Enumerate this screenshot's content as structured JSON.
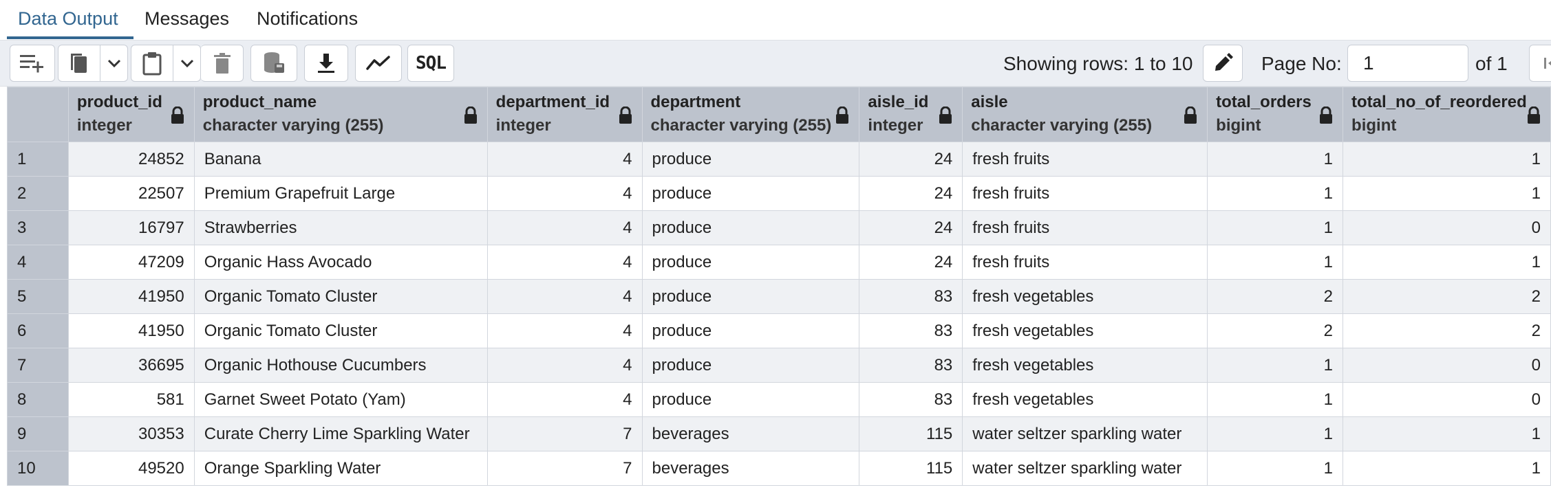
{
  "tabs": [
    {
      "label": "Data Output",
      "active": true
    },
    {
      "label": "Messages",
      "active": false
    },
    {
      "label": "Notifications",
      "active": false
    }
  ],
  "toolbar": {
    "sql_label": "SQL",
    "rows_info": "Showing rows: 1 to 10",
    "page_label": "Page No:",
    "page_value": "1",
    "page_of": "of 1"
  },
  "columns": [
    {
      "name": "product_id",
      "type": "integer"
    },
    {
      "name": "product_name",
      "type": "character varying (255)"
    },
    {
      "name": "department_id",
      "type": "integer"
    },
    {
      "name": "department",
      "type": "character varying (255)"
    },
    {
      "name": "aisle_id",
      "type": "integer"
    },
    {
      "name": "aisle",
      "type": "character varying (255)"
    },
    {
      "name": "total_orders",
      "type": "bigint"
    },
    {
      "name": "total_no_of_reordered",
      "type": "bigint"
    }
  ],
  "rows": [
    {
      "n": "1",
      "cells": [
        "24852",
        "Banana",
        "4",
        "produce",
        "24",
        "fresh fruits",
        "1",
        "1"
      ]
    },
    {
      "n": "2",
      "cells": [
        "22507",
        "Premium Grapefruit Large",
        "4",
        "produce",
        "24",
        "fresh fruits",
        "1",
        "1"
      ]
    },
    {
      "n": "3",
      "cells": [
        "16797",
        "Strawberries",
        "4",
        "produce",
        "24",
        "fresh fruits",
        "1",
        "0"
      ]
    },
    {
      "n": "4",
      "cells": [
        "47209",
        "Organic Hass Avocado",
        "4",
        "produce",
        "24",
        "fresh fruits",
        "1",
        "1"
      ]
    },
    {
      "n": "5",
      "cells": [
        "41950",
        "Organic Tomato Cluster",
        "4",
        "produce",
        "83",
        "fresh vegetables",
        "2",
        "2"
      ]
    },
    {
      "n": "6",
      "cells": [
        "41950",
        "Organic Tomato Cluster",
        "4",
        "produce",
        "83",
        "fresh vegetables",
        "2",
        "2"
      ]
    },
    {
      "n": "7",
      "cells": [
        "36695",
        "Organic Hothouse Cucumbers",
        "4",
        "produce",
        "83",
        "fresh vegetables",
        "1",
        "0"
      ]
    },
    {
      "n": "8",
      "cells": [
        "581",
        "Garnet Sweet Potato (Yam)",
        "4",
        "produce",
        "83",
        "fresh vegetables",
        "1",
        "0"
      ]
    },
    {
      "n": "9",
      "cells": [
        "30353",
        "Curate Cherry Lime Sparkling Water",
        "7",
        "beverages",
        "115",
        "water seltzer sparkling water",
        "1",
        "1"
      ]
    },
    {
      "n": "10",
      "cells": [
        "49520",
        "Orange Sparkling Water",
        "7",
        "beverages",
        "115",
        "water seltzer sparkling water",
        "1",
        "1"
      ]
    }
  ],
  "colors": {
    "accent": "#326690",
    "header_bg": "#bdc3cd",
    "toolbar_bg": "#ebeef3",
    "stripe": "#eff1f4"
  },
  "icons": [
    "add-row-icon",
    "copy-icon",
    "chevron-down-icon",
    "paste-icon",
    "delete-icon",
    "save-data-icon",
    "download-icon",
    "graph-icon",
    "edit-icon",
    "lock-icon",
    "first-page-icon"
  ]
}
